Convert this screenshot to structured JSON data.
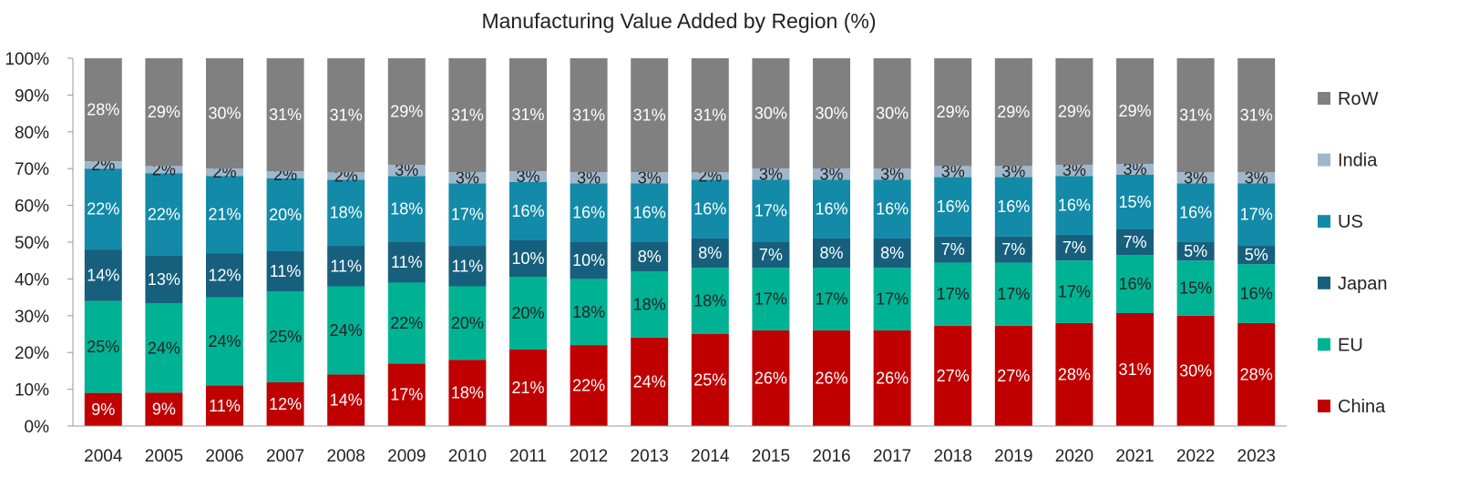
{
  "chart_data": {
    "type": "bar",
    "stacked": true,
    "title": "Manufacturing Value Added by Region (%)",
    "xlabel": "",
    "ylabel": "",
    "ylim": [
      0,
      100
    ],
    "yticks": [
      "0%",
      "10%",
      "20%",
      "30%",
      "40%",
      "50%",
      "60%",
      "70%",
      "80%",
      "90%",
      "100%"
    ],
    "categories": [
      "2004",
      "2005",
      "2006",
      "2007",
      "2008",
      "2009",
      "2010",
      "2011",
      "2012",
      "2013",
      "2014",
      "2015",
      "2016",
      "2017",
      "2018",
      "2019",
      "2020",
      "2021",
      "2022",
      "2023"
    ],
    "legend_position": "right",
    "series": [
      {
        "name": "China",
        "color": "#c00000",
        "label_color": "#ffffff",
        "values": [
          9,
          9,
          11,
          12,
          14,
          17,
          18,
          21,
          22,
          24,
          25,
          26,
          26,
          26,
          27,
          27,
          28,
          31,
          30,
          28
        ],
        "labels": [
          "9%",
          "9%",
          "11%",
          "12%",
          "14%",
          "17%",
          "18%",
          "21%",
          "22%",
          "24%",
          "25%",
          "26%",
          "26%",
          "26%",
          "27%",
          "27%",
          "28%",
          "31%",
          "30%",
          "28%"
        ]
      },
      {
        "name": "EU",
        "color": "#00b294",
        "label_color": "#222222",
        "values": [
          25,
          24,
          24,
          25,
          24,
          22,
          20,
          20,
          18,
          18,
          18,
          17,
          17,
          17,
          17,
          17,
          17,
          16,
          15,
          16
        ],
        "labels": [
          "25%",
          "24%",
          "24%",
          "25%",
          "24%",
          "22%",
          "20%",
          "20%",
          "18%",
          "18%",
          "18%",
          "17%",
          "17%",
          "17%",
          "17%",
          "17%",
          "17%",
          "16%",
          "15%",
          "16%"
        ]
      },
      {
        "name": "Japan",
        "color": "#17607d",
        "label_color": "#ffffff",
        "values": [
          14,
          13,
          12,
          11,
          11,
          11,
          11,
          10,
          10,
          8,
          8,
          7,
          8,
          8,
          7,
          7,
          7,
          7,
          5,
          5
        ],
        "labels": [
          "14%",
          "13%",
          "12%",
          "11%",
          "11%",
          "11%",
          "11%",
          "10%",
          "10%",
          "8%",
          "8%",
          "7%",
          "8%",
          "8%",
          "7%",
          "7%",
          "7%",
          "7%",
          "5%",
          "5%"
        ]
      },
      {
        "name": "US",
        "color": "#138aa8",
        "label_color": "#ffffff",
        "values": [
          22,
          22,
          21,
          20,
          18,
          18,
          17,
          16,
          16,
          16,
          16,
          17,
          16,
          16,
          16,
          16,
          16,
          15,
          16,
          17
        ],
        "labels": [
          "22%",
          "22%",
          "21%",
          "20%",
          "18%",
          "18%",
          "17%",
          "16%",
          "16%",
          "16%",
          "16%",
          "17%",
          "16%",
          "16%",
          "16%",
          "16%",
          "16%",
          "15%",
          "16%",
          "17%"
        ]
      },
      {
        "name": "India",
        "color": "#9fb7cc",
        "label_color": "#222222",
        "values": [
          2,
          2,
          2,
          2,
          2,
          3,
          3,
          3,
          3,
          3,
          2,
          3,
          3,
          3,
          3,
          3,
          3,
          3,
          3,
          3
        ],
        "labels": [
          "2%",
          "2%",
          "2%",
          "2%",
          "2%",
          "3%",
          "3%",
          "3%",
          "3%",
          "3%",
          "2%",
          "3%",
          "3%",
          "3%",
          "3%",
          "3%",
          "3%",
          "3%",
          "3%",
          "3%"
        ]
      },
      {
        "name": "RoW",
        "color": "#808080",
        "label_color": "#ffffff",
        "values": [
          28,
          29,
          30,
          31,
          31,
          29,
          31,
          31,
          31,
          31,
          31,
          30,
          30,
          30,
          29,
          29,
          29,
          29,
          31,
          31
        ],
        "labels": [
          "28%",
          "29%",
          "30%",
          "31%",
          "31%",
          "29%",
          "31%",
          "31%",
          "31%",
          "31%",
          "31%",
          "30%",
          "30%",
          "30%",
          "29%",
          "29%",
          "29%",
          "29%",
          "31%",
          "31%"
        ]
      }
    ]
  }
}
